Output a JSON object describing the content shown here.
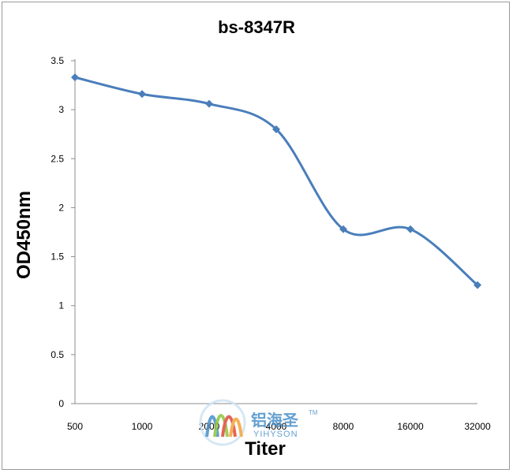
{
  "chart_data": {
    "type": "line",
    "title": "bs-8347R",
    "xlabel": "Titer",
    "ylabel": "OD450nm",
    "categories": [
      "500",
      "1000",
      "2000",
      "4000",
      "8000",
      "16000",
      "32000"
    ],
    "series": [
      {
        "values": [
          3.33,
          3.16,
          3.06,
          2.8,
          1.78,
          1.78,
          1.21
        ],
        "color": "#4a7ebb",
        "marker": "diamond"
      }
    ],
    "ylim": [
      0,
      3.5
    ],
    "yticks": [
      "0",
      "0.5",
      "1",
      "1.5",
      "2",
      "2.5",
      "3",
      "3.5"
    ],
    "grid": false,
    "smooth": true
  },
  "watermark": {
    "text_cn": "铝海圣",
    "text_en": "YIHYSON",
    "tm": "TM",
    "colors": [
      "#4a90c8",
      "#8cc63f",
      "#e04a3a",
      "#f3a33a"
    ]
  }
}
